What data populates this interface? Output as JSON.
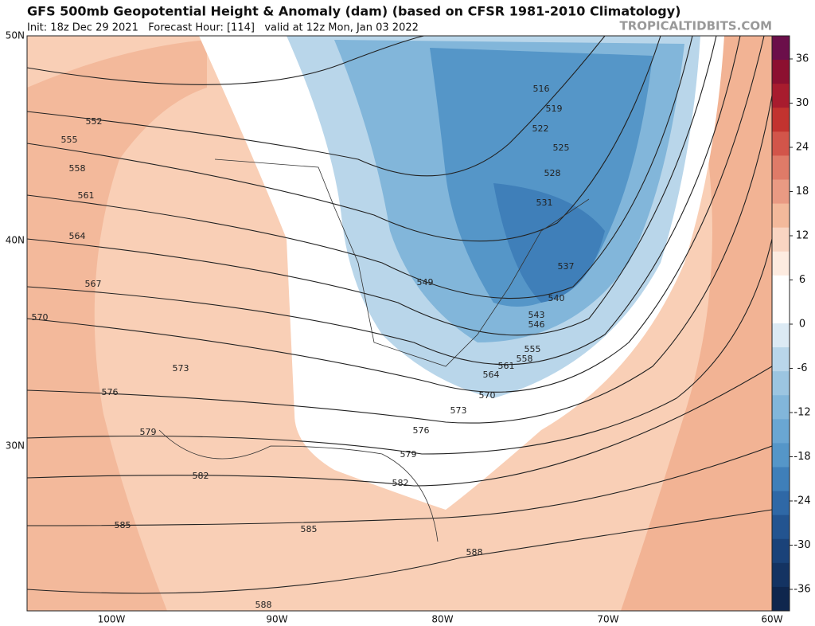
{
  "header": {
    "title": "GFS 500mb Geopotential Height & Anomaly (dam) (based on CFSR 1981-2010 Climatology)",
    "subtitle": "Init: 18z Dec 29 2021   Forecast Hour: [114]   valid at 12z Mon, Jan 03 2022",
    "source": "TROPICALTIDBITS.COM"
  },
  "map": {
    "lat_labels": [
      "50N",
      "40N",
      "30N"
    ],
    "lon_labels": [
      "100W",
      "90W",
      "80W",
      "70W",
      "60W"
    ],
    "contour_labels": [
      552,
      555,
      558,
      561,
      564,
      567,
      570,
      573,
      576,
      579,
      582,
      585,
      585,
      588,
      588,
      582,
      579,
      576,
      573,
      570,
      564,
      561,
      558,
      555,
      546,
      543,
      540,
      537,
      549,
      531,
      528,
      525,
      522,
      519,
      516
    ]
  },
  "colorbar": {
    "ticks": [
      36,
      30,
      24,
      18,
      12,
      6,
      0,
      -6,
      -12,
      -18,
      -24,
      -30,
      -36
    ]
  }
}
